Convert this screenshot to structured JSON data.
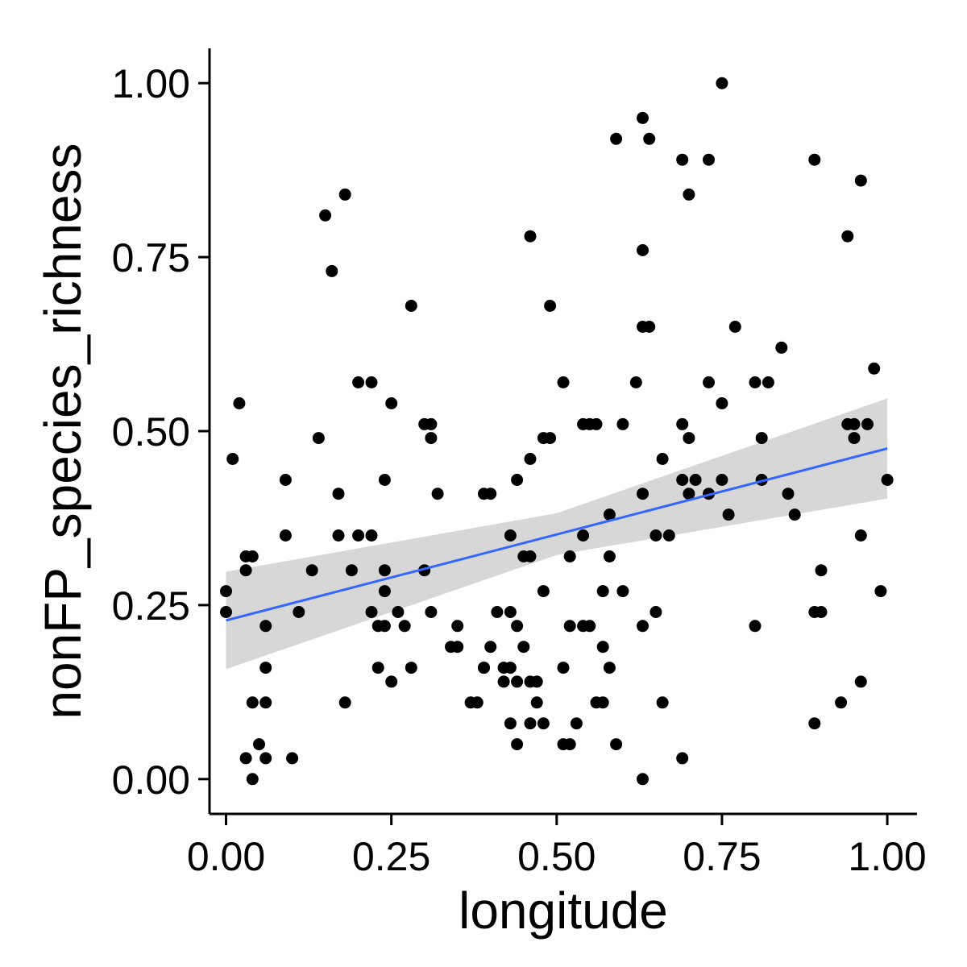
{
  "chart_data": {
    "type": "scatter",
    "title": "",
    "xlabel": "longitude",
    "ylabel": "nonFP_species_richness",
    "xlim": [
      -0.025,
      1.045
    ],
    "ylim": [
      -0.05,
      1.05
    ],
    "xticks": [
      0,
      0.25,
      0.5,
      0.75,
      1.0
    ],
    "xtick_labels": [
      "0.00",
      "0.25",
      "0.50",
      "0.75",
      "1.00"
    ],
    "yticks": [
      0,
      0.25,
      0.5,
      0.75,
      1.0
    ],
    "ytick_labels": [
      "0.00",
      "0.25",
      "0.50",
      "0.75",
      "1.00"
    ],
    "grid": false,
    "point_color": "#000000",
    "fit": {
      "method": "linear",
      "color": "#3366FF",
      "ribbon_color": "#BEBEBE",
      "line": [
        [
          0,
          0.228
        ],
        [
          1,
          0.475
        ]
      ],
      "ribbon": [
        [
          0,
          0.158,
          0.298
        ],
        [
          0.5,
          0.322,
          0.382
        ],
        [
          1,
          0.403,
          0.547
        ]
      ]
    },
    "points": [
      [
        0.0,
        0.27
      ],
      [
        0.0,
        0.24
      ],
      [
        0.01,
        0.46
      ],
      [
        0.02,
        0.54
      ],
      [
        0.03,
        0.3
      ],
      [
        0.03,
        0.32
      ],
      [
        0.04,
        0.32
      ],
      [
        0.03,
        0.03
      ],
      [
        0.04,
        0.0
      ],
      [
        0.04,
        0.11
      ],
      [
        0.05,
        0.05
      ],
      [
        0.06,
        0.22
      ],
      [
        0.06,
        0.11
      ],
      [
        0.06,
        0.03
      ],
      [
        0.06,
        0.16
      ],
      [
        0.09,
        0.43
      ],
      [
        0.09,
        0.35
      ],
      [
        0.1,
        0.03
      ],
      [
        0.11,
        0.24
      ],
      [
        0.13,
        0.3
      ],
      [
        0.14,
        0.49
      ],
      [
        0.15,
        0.81
      ],
      [
        0.16,
        0.73
      ],
      [
        0.17,
        0.41
      ],
      [
        0.17,
        0.35
      ],
      [
        0.18,
        0.84
      ],
      [
        0.18,
        0.11
      ],
      [
        0.19,
        0.3
      ],
      [
        0.2,
        0.57
      ],
      [
        0.2,
        0.35
      ],
      [
        0.22,
        0.57
      ],
      [
        0.22,
        0.35
      ],
      [
        0.22,
        0.24
      ],
      [
        0.23,
        0.22
      ],
      [
        0.23,
        0.16
      ],
      [
        0.24,
        0.43
      ],
      [
        0.24,
        0.3
      ],
      [
        0.24,
        0.27
      ],
      [
        0.24,
        0.22
      ],
      [
        0.25,
        0.54
      ],
      [
        0.25,
        0.14
      ],
      [
        0.26,
        0.24
      ],
      [
        0.27,
        0.22
      ],
      [
        0.28,
        0.68
      ],
      [
        0.28,
        0.16
      ],
      [
        0.3,
        0.51
      ],
      [
        0.3,
        0.3
      ],
      [
        0.31,
        0.51
      ],
      [
        0.31,
        0.49
      ],
      [
        0.31,
        0.24
      ],
      [
        0.32,
        0.41
      ],
      [
        0.34,
        0.19
      ],
      [
        0.35,
        0.19
      ],
      [
        0.35,
        0.22
      ],
      [
        0.37,
        0.11
      ],
      [
        0.38,
        0.11
      ],
      [
        0.39,
        0.16
      ],
      [
        0.39,
        0.16
      ],
      [
        0.39,
        0.41
      ],
      [
        0.4,
        0.41
      ],
      [
        0.4,
        0.19
      ],
      [
        0.41,
        0.24
      ],
      [
        0.42,
        0.16
      ],
      [
        0.42,
        0.14
      ],
      [
        0.43,
        0.35
      ],
      [
        0.43,
        0.24
      ],
      [
        0.43,
        0.16
      ],
      [
        0.43,
        0.08
      ],
      [
        0.44,
        0.43
      ],
      [
        0.44,
        0.22
      ],
      [
        0.44,
        0.14
      ],
      [
        0.44,
        0.05
      ],
      [
        0.45,
        0.19
      ],
      [
        0.45,
        0.32
      ],
      [
        0.46,
        0.32
      ],
      [
        0.46,
        0.14
      ],
      [
        0.46,
        0.08
      ],
      [
        0.46,
        0.78
      ],
      [
        0.46,
        0.46
      ],
      [
        0.47,
        0.11
      ],
      [
        0.47,
        0.14
      ],
      [
        0.48,
        0.08
      ],
      [
        0.48,
        0.49
      ],
      [
        0.48,
        0.27
      ],
      [
        0.49,
        0.49
      ],
      [
        0.49,
        0.68
      ],
      [
        0.51,
        0.05
      ],
      [
        0.51,
        0.57
      ],
      [
        0.51,
        0.16
      ],
      [
        0.52,
        0.32
      ],
      [
        0.52,
        0.05
      ],
      [
        0.52,
        0.22
      ],
      [
        0.53,
        0.08
      ],
      [
        0.54,
        0.22
      ],
      [
        0.54,
        0.35
      ],
      [
        0.54,
        0.51
      ],
      [
        0.55,
        0.51
      ],
      [
        0.55,
        0.22
      ],
      [
        0.56,
        0.51
      ],
      [
        0.56,
        0.11
      ],
      [
        0.57,
        0.19
      ],
      [
        0.57,
        0.11
      ],
      [
        0.57,
        0.27
      ],
      [
        0.58,
        0.38
      ],
      [
        0.58,
        0.32
      ],
      [
        0.58,
        0.16
      ],
      [
        0.59,
        0.92
      ],
      [
        0.59,
        0.05
      ],
      [
        0.6,
        0.51
      ],
      [
        0.6,
        0.27
      ],
      [
        0.62,
        0.57
      ],
      [
        0.63,
        0.22
      ],
      [
        0.63,
        0.65
      ],
      [
        0.63,
        0.76
      ],
      [
        0.63,
        0.41
      ],
      [
        0.63,
        0.0
      ],
      [
        0.63,
        0.95
      ],
      [
        0.64,
        0.65
      ],
      [
        0.64,
        0.92
      ],
      [
        0.65,
        0.35
      ],
      [
        0.65,
        0.24
      ],
      [
        0.66,
        0.46
      ],
      [
        0.66,
        0.11
      ],
      [
        0.67,
        0.35
      ],
      [
        0.69,
        0.03
      ],
      [
        0.69,
        0.43
      ],
      [
        0.69,
        0.89
      ],
      [
        0.69,
        0.51
      ],
      [
        0.7,
        0.49
      ],
      [
        0.7,
        0.41
      ],
      [
        0.7,
        0.84
      ],
      [
        0.71,
        0.43
      ],
      [
        0.73,
        0.89
      ],
      [
        0.73,
        0.57
      ],
      [
        0.73,
        0.41
      ],
      [
        0.75,
        1.0
      ],
      [
        0.75,
        0.43
      ],
      [
        0.75,
        0.54
      ],
      [
        0.76,
        0.38
      ],
      [
        0.77,
        0.65
      ],
      [
        0.8,
        0.57
      ],
      [
        0.8,
        0.22
      ],
      [
        0.81,
        0.43
      ],
      [
        0.81,
        0.49
      ],
      [
        0.82,
        0.57
      ],
      [
        0.84,
        0.62
      ],
      [
        0.85,
        0.41
      ],
      [
        0.86,
        0.38
      ],
      [
        0.89,
        0.89
      ],
      [
        0.89,
        0.08
      ],
      [
        0.89,
        0.24
      ],
      [
        0.9,
        0.24
      ],
      [
        0.9,
        0.3
      ],
      [
        0.93,
        0.11
      ],
      [
        0.94,
        0.78
      ],
      [
        0.94,
        0.51
      ],
      [
        0.95,
        0.51
      ],
      [
        0.95,
        0.49
      ],
      [
        0.96,
        0.86
      ],
      [
        0.96,
        0.35
      ],
      [
        0.96,
        0.14
      ],
      [
        0.97,
        0.51
      ],
      [
        0.98,
        0.59
      ],
      [
        0.99,
        0.27
      ],
      [
        1.0,
        0.43
      ]
    ]
  }
}
